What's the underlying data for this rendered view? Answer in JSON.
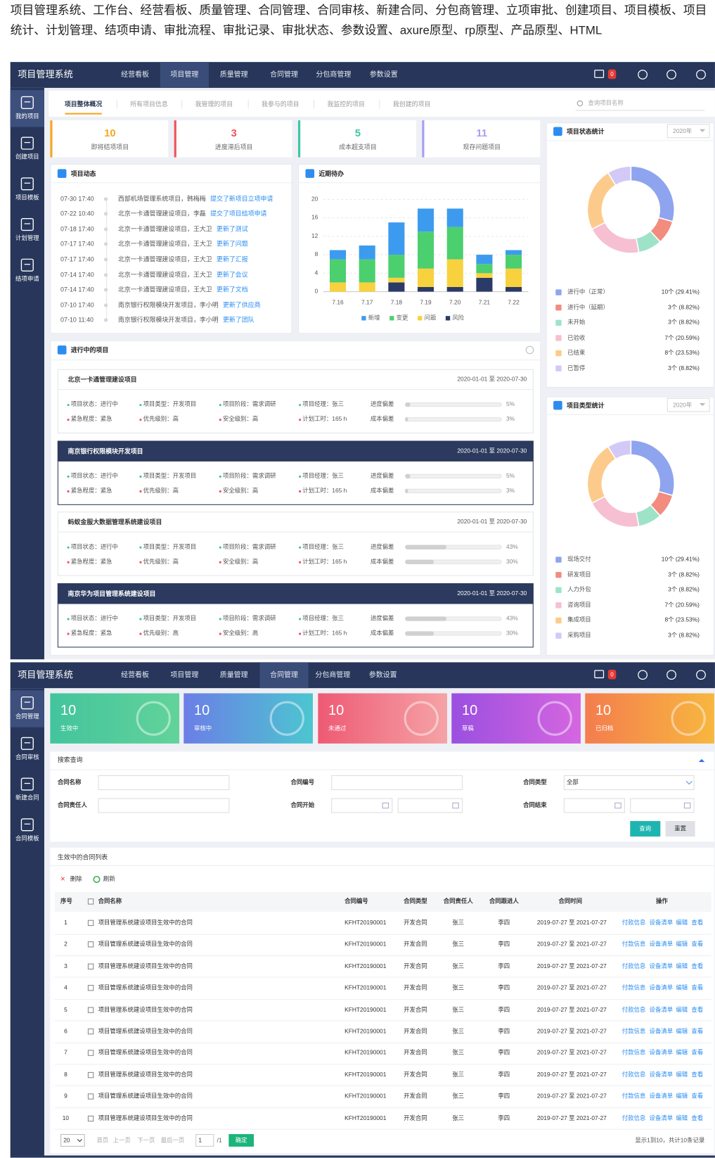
{
  "caption": "项目管理系统、工作台、经营看板、质量管理、合同管理、合同审核、新建合同、分包商管理、立项审批、创建项目、项目模板、项目统计、计划管理、结项申请、审批流程、审批记录、审批状态、参数设置、axure原型、rp原型、产品原型、HTML",
  "dashboard": {
    "app_title": "项目管理系统",
    "nav": [
      "经营看板",
      "项目管理",
      "质量管理",
      "合同管理",
      "分包商管理",
      "参数设置"
    ],
    "badge": "0",
    "sidebar": [
      "我的项目",
      "创建项目",
      "项目模板",
      "计划管理",
      "结项申请"
    ],
    "tabs": [
      "项目整体概况",
      "所有项目信息",
      "我管理的项目",
      "我参与的项目",
      "我监控的项目",
      "我创建的项目"
    ],
    "search_placeholder": "查询项目名称",
    "stats": [
      {
        "value": 10,
        "label": "即将结项项目"
      },
      {
        "value": 3,
        "label": "进度滞后项目"
      },
      {
        "value": 5,
        "label": "成本超支项目"
      },
      {
        "value": 11,
        "label": "现存问题项目"
      }
    ],
    "activity": {
      "title": "项目动态",
      "items": [
        {
          "time": "07-30 17:40",
          "text": "西部机场管理系统项目，韩梅梅",
          "action": "提交了新项目立项申请"
        },
        {
          "time": "07-22 10:40",
          "text": "北京一卡通管理建设项目，李磊",
          "action": "提交了项目结项申请"
        },
        {
          "time": "07-18 17:40",
          "text": "北京一卡通管理建设项目，王大卫",
          "action": "更新了测试"
        },
        {
          "time": "07-17 17:40",
          "text": "北京一卡通管理建设项目，王大卫",
          "action": "更新了问题"
        },
        {
          "time": "07-17 17:40",
          "text": "北京一卡通管理建设项目，王大卫",
          "action": "更新了汇报"
        },
        {
          "time": "07-14 17:40",
          "text": "北京一卡通管理建设项目，王大卫",
          "action": "更新了会议"
        },
        {
          "time": "07-14 17:40",
          "text": "北京一卡通管理建设项目，王大卫",
          "action": "更新了文档"
        },
        {
          "time": "07-10 17:40",
          "text": "南京银行权限模块开发项目，李小明",
          "action": "更新了供应商"
        },
        {
          "time": "07-10 11:40",
          "text": "南京银行权限模块开发项目，李小明",
          "action": "更新了团队"
        }
      ]
    },
    "ongoing": {
      "title": "进行中的项目",
      "progress_label": "进度偏差",
      "cost_label": "成本偏差",
      "projects": [
        {
          "name": "北京一卡通管理建设项目",
          "dates": "2020-01-01 至 2020-07-30",
          "fields": [
            "项目状态：进行中",
            "项目类型：开发项目",
            "项目阶段：需求调研",
            "项目经理：张三",
            "紧急程度：紧急",
            "优先级别：高",
            "安全级别：高",
            "计划工时：165 h"
          ],
          "progress": {
            "value": 5,
            "label": "5%"
          },
          "cost": {
            "value": 3,
            "label": "3%"
          }
        },
        {
          "name": "南京银行权限模块开发项目",
          "dates": "2020-01-01 至 2020-07-30",
          "fields": [
            "项目状态：进行中",
            "项目类型：开发项目",
            "项目阶段：需求调研",
            "项目经理：张三",
            "紧急程度：紧急",
            "优先级别：高",
            "安全级别：高",
            "计划工时：165 h"
          ],
          "progress": {
            "value": 5,
            "label": "5%"
          },
          "cost": {
            "value": 3,
            "label": "3%"
          }
        },
        {
          "name": "蚂蚁金服大数据管理系统建设项目",
          "dates": "2020-01-01 至 2020-07-30",
          "fields": [
            "项目状态：进行中",
            "项目类型：开发项目",
            "项目阶段：需求调研",
            "项目经理：张三",
            "紧急程度：紧急",
            "优先级别：高",
            "安全级别：高",
            "计划工时：165 h"
          ],
          "progress": {
            "value": 43,
            "label": "43%"
          },
          "cost": {
            "value": 30,
            "label": "30%"
          }
        },
        {
          "name": "南京华为项目管理系统建设项目",
          "dates": "2020-01-01 至 2020-07-30",
          "fields": [
            "项目状态：进行中",
            "项目类型：开发项目",
            "项目阶段：需求调研",
            "项目经理：张三",
            "紧急程度：紧急",
            "优先级别：高",
            "安全级别：高",
            "计划工时：165 h"
          ],
          "progress": {
            "value": 43,
            "label": "43%"
          },
          "cost": {
            "value": 30,
            "label": "30%"
          }
        }
      ]
    }
  },
  "chart_data": [
    {
      "type": "bar",
      "stacked": true,
      "title": "近期待办",
      "categories": [
        "7.16",
        "7.17",
        "7.18",
        "7.19",
        "7.20",
        "7.21",
        "7.22"
      ],
      "series": [
        {
          "name": "新增",
          "color": "#3d9bef",
          "values": [
            2,
            3,
            7,
            5,
            4,
            2,
            1
          ]
        },
        {
          "name": "变更",
          "color": "#4ccf6e",
          "values": [
            5,
            5,
            5,
            8,
            7,
            2,
            3
          ]
        },
        {
          "name": "问题",
          "color": "#f7d23e",
          "values": [
            2,
            2,
            1,
            4,
            6,
            1,
            4
          ]
        },
        {
          "name": "风险",
          "color": "#2b3a67",
          "values": [
            0,
            0,
            2,
            1,
            1,
            3,
            1
          ]
        }
      ],
      "ylim": [
        0,
        20
      ],
      "yticks": [
        0,
        4,
        8,
        12,
        16,
        20
      ],
      "grid": true,
      "legend": "bottom"
    },
    {
      "type": "pie",
      "donut": true,
      "title": "项目状态统计",
      "year": "2020年",
      "categories": [
        "进行中（正常）",
        "进行中（延期）",
        "未开始",
        "已验收",
        "已结束",
        "已暂停"
      ],
      "values": [
        10,
        3,
        3,
        7,
        8,
        3
      ],
      "value_labels": [
        "10个 (29.41%)",
        "3个 (8.82%)",
        "3个 (8.82%)",
        "7个 (20.59%)",
        "8个 (23.53%)",
        "3个 (8.82%)"
      ],
      "colors": [
        "#8fa4ee",
        "#f28c7f",
        "#9ee3c8",
        "#f6bfd2",
        "#fccb8c",
        "#d3c9f7"
      ]
    },
    {
      "type": "pie",
      "donut": true,
      "title": "项目类型统计",
      "year": "2020年",
      "categories": [
        "现场交付",
        "研发项目",
        "人力外包",
        "咨询项目",
        "集成项目",
        "采购项目"
      ],
      "values": [
        10,
        3,
        3,
        7,
        8,
        3
      ],
      "value_labels": [
        "10个 (29.41%)",
        "3个 (8.82%)",
        "3个 (8.82%)",
        "7个 (20.59%)",
        "8个 (23.53%)",
        "3个 (8.82%)"
      ],
      "colors": [
        "#8fa4ee",
        "#f28c7f",
        "#9ee3c8",
        "#f6bfd2",
        "#fccb8c",
        "#d3c9f7"
      ]
    }
  ],
  "contracts": {
    "app_title": "项目管理系统",
    "nav": [
      "经营看板",
      "项目管理",
      "质量管理",
      "合同管理",
      "分包商管理",
      "参数设置"
    ],
    "badge": "0",
    "sidebar": [
      "合同管理",
      "合同审核",
      "新建合同",
      "合同模板"
    ],
    "stats": [
      {
        "value": 10,
        "label": "生效中"
      },
      {
        "value": 10,
        "label": "审核中"
      },
      {
        "value": 10,
        "label": "未通过"
      },
      {
        "value": 10,
        "label": "草稿"
      },
      {
        "value": 10,
        "label": "已归档"
      }
    ],
    "search": {
      "title": "搜索查询",
      "labels": [
        "合同名称",
        "合同编号",
        "合同类型",
        "合同责任人",
        "合同开始",
        "合同结束"
      ],
      "type_value": "全部",
      "buttons": [
        "查询",
        "重置"
      ]
    },
    "list": {
      "title": "生效中的合同列表",
      "toolbar": [
        "删除",
        "刷新"
      ],
      "headers": [
        "序号",
        "合同名称",
        "合同编号",
        "合同类型",
        "合同责任人",
        "合同跟进人",
        "合同时间",
        "操作"
      ],
      "rows": [
        [
          1,
          "项目管理系统建设项目生效中的合同",
          "KFHT20190001",
          "开发合同",
          "张三",
          "李四",
          "2019-07-27 至 2021-07-27",
          "付款信息",
          "设备清单",
          "编辑",
          "查看"
        ],
        [
          2,
          "项目管理系统建设项目生效中的合同",
          "KFHT20190001",
          "开发合同",
          "张三",
          "李四",
          "2019-07-27 至 2021-07-27",
          "付款信息",
          "设备清单",
          "编辑",
          "查看"
        ],
        [
          3,
          "项目管理系统建设项目生效中的合同",
          "KFHT20190001",
          "开发合同",
          "张三",
          "李四",
          "2019-07-27 至 2021-07-27",
          "付款信息",
          "设备清单",
          "编辑",
          "查看"
        ],
        [
          4,
          "项目管理系统建设项目生效中的合同",
          "KFHT20190001",
          "开发合同",
          "张三",
          "李四",
          "2019-07-27 至 2021-07-27",
          "付款信息",
          "设备清单",
          "编辑",
          "查看"
        ],
        [
          5,
          "项目管理系统建设项目生效中的合同",
          "KFHT20190001",
          "开发合同",
          "张三",
          "李四",
          "2019-07-27 至 2021-07-27",
          "付款信息",
          "设备清单",
          "编辑",
          "查看"
        ],
        [
          6,
          "项目管理系统建设项目生效中的合同",
          "KFHT20190001",
          "开发合同",
          "张三",
          "李四",
          "2019-07-27 至 2021-07-27",
          "付款信息",
          "设备清单",
          "编辑",
          "查看"
        ],
        [
          7,
          "项目管理系统建设项目生效中的合同",
          "KFHT20190001",
          "开发合同",
          "张三",
          "李四",
          "2019-07-27 至 2021-07-27",
          "付款信息",
          "设备清单",
          "编辑",
          "查看"
        ],
        [
          8,
          "项目管理系统建设项目生效中的合同",
          "KFHT20190001",
          "开发合同",
          "张三",
          "李四",
          "2019-07-27 至 2021-07-27",
          "付款信息",
          "设备清单",
          "编辑",
          "查看"
        ],
        [
          9,
          "项目管理系统建设项目生效中的合同",
          "KFHT20190001",
          "开发合同",
          "张三",
          "李四",
          "2019-07-27 至 2021-07-27",
          "付款信息",
          "设备清单",
          "编辑",
          "查看"
        ],
        [
          10,
          "项目管理系统建设项目生效中的合同",
          "KFHT20190001",
          "开发合同",
          "张三",
          "李四",
          "2019-07-27 至 2021-07-27",
          "付款信息",
          "设备清单",
          "编辑",
          "查看"
        ]
      ]
    },
    "pagination": {
      "page_size": "20",
      "links": [
        "首页",
        "上一页",
        "下一页",
        "最后一页"
      ],
      "page": "1",
      "total_pages": "/1",
      "go": "确定",
      "summary": "显示1到10，共计10条记录"
    }
  }
}
